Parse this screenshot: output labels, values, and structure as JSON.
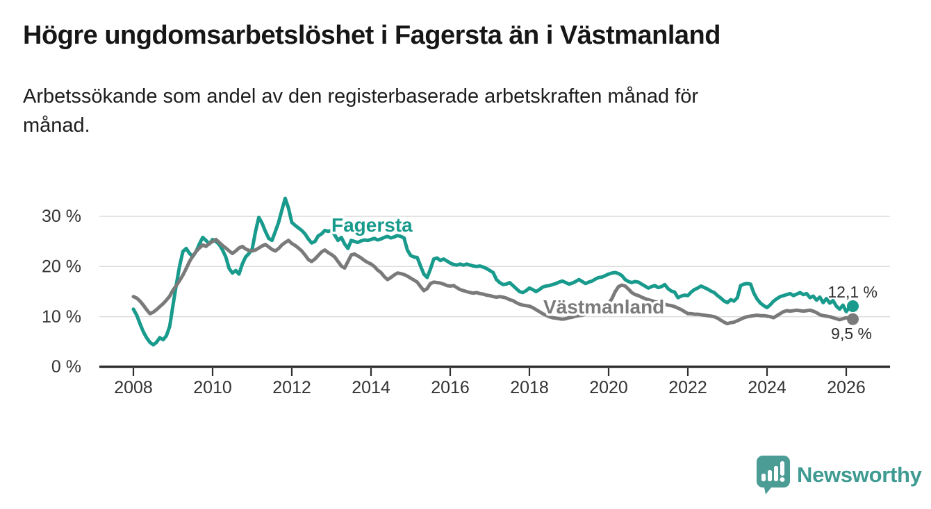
{
  "title": "Högre ungdomsarbetslöshet i Fagersta än i Västmanland",
  "subtitle": "Arbetssökande som andel av den registerbaserade arbetskraften månad för\nmånad.",
  "branding": {
    "logo_text": "Newsworthy",
    "logo_icon": "bar-chart-speech-bubble-icon",
    "logo_color": "#4a9c95",
    "logo_text_color": "#3f9b92"
  },
  "chart_data": {
    "type": "line",
    "frequency": "monthly",
    "x_monthly_start": "2008-01",
    "x_monthly_end": "2026-03",
    "x_ticks": [
      2008,
      2010,
      2012,
      2014,
      2016,
      2018,
      2020,
      2022,
      2024,
      2026
    ],
    "y_tick_labels": [
      "0 %",
      "10 %",
      "20 %",
      "30 %"
    ],
    "y_tick_values": [
      0,
      10,
      20,
      30
    ],
    "ylim": [
      0,
      34.5
    ],
    "grid": "horizontal",
    "legend_position": "inline-annotations",
    "series": [
      {
        "name": "Fagersta",
        "color": "#189a8c",
        "end_label": "12,1 %",
        "end_value": 12.1,
        "values": [
          11.5,
          10.3,
          8.6,
          7.0,
          5.8,
          4.9,
          4.4,
          4.9,
          5.8,
          5.4,
          6.2,
          8.1,
          12.3,
          16.4,
          20.1,
          23.0,
          23.6,
          22.6,
          22.0,
          23.0,
          24.5,
          25.8,
          25.2,
          24.5,
          25.4,
          25.0,
          24.4,
          23.3,
          21.9,
          19.6,
          18.7,
          19.2,
          18.5,
          20.5,
          21.9,
          22.6,
          23.5,
          27.0,
          29.8,
          28.6,
          27.0,
          25.6,
          25.2,
          27.0,
          28.8,
          31.3,
          33.6,
          31.6,
          28.8,
          28.2,
          27.7,
          27.2,
          26.5,
          25.5,
          24.7,
          25.0,
          26.1,
          26.5,
          27.2,
          27.0,
          27.2,
          26.3,
          25.2,
          25.8,
          24.5,
          23.6,
          25.2,
          25.0,
          24.8,
          25.1,
          25.3,
          25.2,
          25.4,
          25.6,
          25.3,
          25.5,
          25.8,
          26.0,
          25.7,
          25.9,
          26.2,
          26.0,
          25.7,
          23.3,
          22.2,
          21.9,
          21.8,
          20.1,
          18.5,
          17.8,
          19.5,
          21.5,
          21.7,
          21.2,
          21.5,
          21.1,
          20.7,
          20.4,
          20.3,
          20.5,
          20.3,
          20.5,
          20.3,
          20.1,
          20.0,
          20.1,
          19.9,
          19.6,
          19.2,
          18.8,
          17.4,
          16.8,
          16.4,
          16.5,
          16.8,
          16.2,
          15.6,
          15.0,
          14.8,
          15.2,
          15.7,
          15.4,
          15.0,
          15.4,
          15.9,
          16.1,
          16.2,
          16.4,
          16.6,
          16.9,
          17.1,
          16.8,
          16.5,
          16.7,
          17.0,
          17.4,
          17.0,
          16.6,
          16.9,
          17.1,
          17.5,
          17.8,
          17.9,
          18.2,
          18.5,
          18.7,
          18.8,
          18.6,
          18.2,
          17.4,
          17.0,
          16.8,
          17.0,
          16.9,
          16.5,
          16.1,
          15.7,
          16.0,
          16.2,
          15.8,
          16.0,
          16.4,
          15.6,
          15.1,
          14.9,
          13.8,
          14.1,
          14.3,
          14.2,
          14.9,
          15.4,
          15.7,
          16.1,
          15.8,
          15.5,
          15.1,
          14.8,
          14.2,
          13.7,
          13.1,
          12.8,
          13.4,
          13.1,
          13.8,
          16.2,
          16.5,
          16.6,
          16.5,
          14.7,
          13.5,
          12.7,
          12.2,
          11.8,
          12.4,
          13.1,
          13.6,
          14.0,
          14.2,
          14.4,
          14.6,
          14.2,
          14.5,
          14.8,
          14.4,
          14.6,
          13.8,
          14.1,
          13.3,
          13.9,
          12.8,
          13.6,
          12.7,
          13.2,
          12.1,
          11.5,
          12.3,
          11.0,
          11.9,
          12.1
        ]
      },
      {
        "name": "Västmanland",
        "color": "#7a7a7a",
        "end_label": "9,5 %",
        "end_value": 9.5,
        "values": [
          14.0,
          13.7,
          13.1,
          12.3,
          11.4,
          10.6,
          10.9,
          11.4,
          12.0,
          12.6,
          13.3,
          14.1,
          15.3,
          16.2,
          17.2,
          18.3,
          19.6,
          21.0,
          22.1,
          23.0,
          23.7,
          24.3,
          24.0,
          24.6,
          25.0,
          25.4,
          24.8,
          24.2,
          23.7,
          23.1,
          22.6,
          23.1,
          23.7,
          24.0,
          23.5,
          23.2,
          23.1,
          23.3,
          23.7,
          24.1,
          24.4,
          23.9,
          23.4,
          23.1,
          23.6,
          24.3,
          24.8,
          25.2,
          24.6,
          24.2,
          23.7,
          23.1,
          22.3,
          21.4,
          21.0,
          21.5,
          22.2,
          22.9,
          23.3,
          22.8,
          22.4,
          21.9,
          21.0,
          20.1,
          19.7,
          21.0,
          22.3,
          22.5,
          22.1,
          21.7,
          21.2,
          20.8,
          20.5,
          20.0,
          19.3,
          18.8,
          18.0,
          17.4,
          17.8,
          18.3,
          18.7,
          18.6,
          18.4,
          18.1,
          17.7,
          17.3,
          16.9,
          16.0,
          15.2,
          15.6,
          16.6,
          16.9,
          16.8,
          16.7,
          16.5,
          16.2,
          16.1,
          16.2,
          15.8,
          15.4,
          15.2,
          15.0,
          14.8,
          14.7,
          14.8,
          14.6,
          14.5,
          14.3,
          14.2,
          14.0,
          13.9,
          14.0,
          13.9,
          13.7,
          13.4,
          13.2,
          12.8,
          12.5,
          12.3,
          12.2,
          12.1,
          11.8,
          11.4,
          11.0,
          10.6,
          10.3,
          10.0,
          9.8,
          9.7,
          9.6,
          9.5,
          9.6,
          9.8,
          9.9,
          10.1,
          10.2,
          10.3,
          10.5,
          10.7,
          10.9,
          11.1,
          11.3,
          11.6,
          12.0,
          12.6,
          13.6,
          15.0,
          16.0,
          16.3,
          16.1,
          15.5,
          14.8,
          14.4,
          14.2,
          13.9,
          13.6,
          13.4,
          13.2,
          13.0,
          12.9,
          12.7,
          12.5,
          12.3,
          12.2,
          12.0,
          11.7,
          11.4,
          11.0,
          10.6,
          10.6,
          10.5,
          10.5,
          10.4,
          10.3,
          10.2,
          10.1,
          10.0,
          9.7,
          9.3,
          8.9,
          8.6,
          8.8,
          8.9,
          9.2,
          9.5,
          9.8,
          10.0,
          10.1,
          10.2,
          10.3,
          10.2,
          10.2,
          10.1,
          10.0,
          9.8,
          10.2,
          10.6,
          11.0,
          11.2,
          11.1,
          11.2,
          11.3,
          11.2,
          11.1,
          11.2,
          11.3,
          11.1,
          10.8,
          10.4,
          10.2,
          10.1,
          10.0,
          9.8,
          9.6,
          9.4,
          9.6,
          9.8,
          9.6,
          9.5
        ]
      }
    ]
  }
}
